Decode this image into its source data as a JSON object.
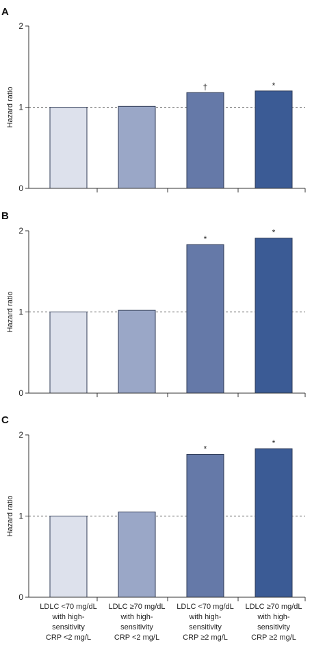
{
  "chart_data": [
    {
      "type": "bar",
      "panel": "A",
      "ylabel": "Hazard ratio",
      "ylim": [
        0,
        2
      ],
      "yticks": [
        "0",
        "1",
        "2"
      ],
      "reference_line": 1,
      "categories": [
        [
          "LDLC <70 mg/dL",
          "with high-",
          "sensitivity",
          "CRP <2 mg/L"
        ],
        [
          "LDLC ≥70 mg/dL",
          "with high-",
          "sensitivity",
          "CRP <2 mg/L"
        ],
        [
          "LDLC <70 mg/dL",
          "with high-",
          "sensitivity",
          "CRP ≥2 mg/L"
        ],
        [
          "LDLC ≥70 mg/dL",
          "with high-",
          "sensitivity",
          "CRP ≥2 mg/L"
        ]
      ],
      "values": [
        1.0,
        1.01,
        1.18,
        1.2
      ],
      "markers": [
        "",
        "",
        "†",
        "*"
      ],
      "colors": [
        "#dde1ec",
        "#9aa7c7",
        "#6579a8",
        "#3b5b95"
      ]
    },
    {
      "type": "bar",
      "panel": "B",
      "ylabel": "Hazard ratio",
      "ylim": [
        0,
        2
      ],
      "yticks": [
        "0",
        "1",
        "2"
      ],
      "reference_line": 1,
      "categories": [
        [
          "LDLC <70 mg/dL",
          "with high-",
          "sensitivity",
          "CRP <2 mg/L"
        ],
        [
          "LDLC ≥70 mg/dL",
          "with high-",
          "sensitivity",
          "CRP <2 mg/L"
        ],
        [
          "LDLC <70 mg/dL",
          "with high-",
          "sensitivity",
          "CRP ≥2 mg/L"
        ],
        [
          "LDLC ≥70 mg/dL",
          "with high-",
          "sensitivity",
          "CRP ≥2 mg/L"
        ]
      ],
      "values": [
        1.0,
        1.02,
        1.83,
        1.91
      ],
      "markers": [
        "",
        "",
        "*",
        "*"
      ],
      "colors": [
        "#dde1ec",
        "#9aa7c7",
        "#6579a8",
        "#3b5b95"
      ]
    },
    {
      "type": "bar",
      "panel": "C",
      "ylabel": "Hazard ratio",
      "ylim": [
        0,
        2
      ],
      "yticks": [
        "0",
        "1",
        "2"
      ],
      "reference_line": 1,
      "categories": [
        [
          "LDLC <70 mg/dL",
          "with high-",
          "sensitivity",
          "CRP <2 mg/L"
        ],
        [
          "LDLC ≥70 mg/dL",
          "with high-",
          "sensitivity",
          "CRP <2 mg/L"
        ],
        [
          "LDLC <70 mg/dL",
          "with high-",
          "sensitivity",
          "CRP ≥2 mg/L"
        ],
        [
          "LDLC ≥70 mg/dL",
          "with high-",
          "sensitivity",
          "CRP ≥2 mg/L"
        ]
      ],
      "values": [
        1.0,
        1.05,
        1.76,
        1.83
      ],
      "markers": [
        "",
        "",
        "*",
        "*"
      ],
      "colors": [
        "#dde1ec",
        "#9aa7c7",
        "#6579a8",
        "#3b5b95"
      ]
    }
  ]
}
